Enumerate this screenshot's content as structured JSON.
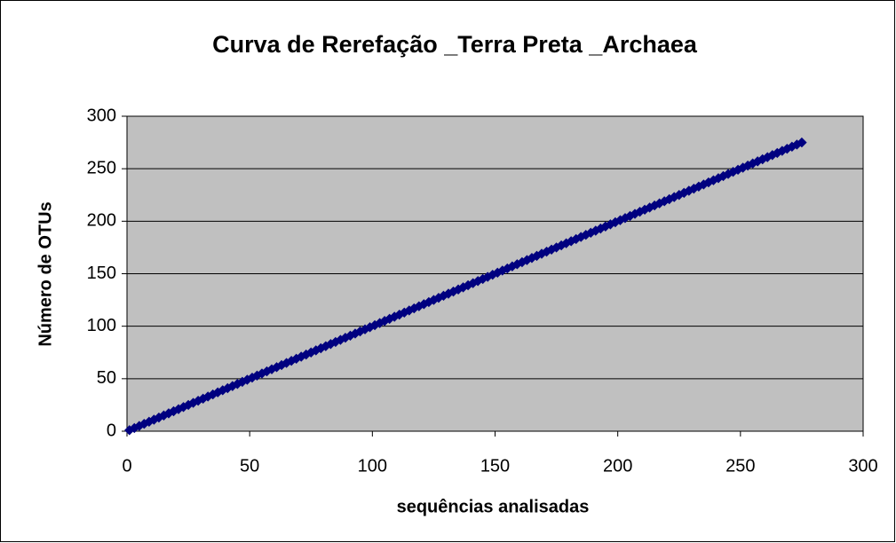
{
  "chart_data": {
    "type": "scatter",
    "title": "Curva de Rerefação _Terra Preta _Archaea",
    "x_label": "sequências analisadas",
    "y_label": "Número de OTUs",
    "xlim": [
      0,
      300
    ],
    "xticks": [
      0,
      50,
      100,
      150,
      200,
      250,
      300
    ],
    "ylim": [
      0,
      300
    ],
    "yticks": [
      0,
      50,
      100,
      150,
      200,
      250,
      300
    ],
    "grid": true,
    "background": "#c0c0c0",
    "series": [
      {
        "color": "#000080",
        "x": [
          1,
          3,
          5,
          7,
          9,
          11,
          13,
          15,
          17,
          19,
          21,
          23,
          25,
          27,
          29,
          31,
          33,
          35,
          37,
          39,
          41,
          43,
          45,
          47,
          49,
          51,
          53,
          55,
          57,
          59,
          61,
          63,
          65,
          67,
          69,
          71,
          73,
          75,
          77,
          79,
          81,
          83,
          85,
          87,
          89,
          91,
          93,
          95,
          97,
          99,
          101,
          103,
          105,
          107,
          109,
          111,
          113,
          115,
          117,
          119,
          121,
          123,
          125,
          127,
          129,
          131,
          133,
          135,
          137,
          139,
          141,
          143,
          145,
          147,
          149,
          151,
          153,
          155,
          157,
          159,
          161,
          163,
          165,
          167,
          169,
          171,
          173,
          175,
          177,
          179,
          181,
          183,
          185,
          187,
          189,
          191,
          193,
          195,
          197,
          199,
          201,
          203,
          205,
          207,
          209,
          211,
          213,
          215,
          217,
          219,
          221,
          223,
          225,
          227,
          229,
          231,
          233,
          235,
          237,
          239,
          241,
          243,
          245,
          247,
          249,
          251,
          253,
          255,
          257,
          259,
          261,
          263,
          265,
          267,
          269,
          271,
          273,
          275
        ],
        "values": [
          1,
          3,
          5,
          7,
          9,
          11,
          13,
          15,
          17,
          19,
          21,
          23,
          25,
          27,
          29,
          31,
          33,
          35,
          37,
          39,
          41,
          43,
          45,
          47,
          49,
          51,
          53,
          55,
          57,
          59,
          61,
          63,
          65,
          67,
          69,
          71,
          73,
          75,
          77,
          79,
          81,
          83,
          85,
          87,
          89,
          91,
          93,
          95,
          97,
          99,
          101,
          103,
          105,
          107,
          109,
          111,
          113,
          115,
          117,
          119,
          121,
          123,
          125,
          127,
          129,
          131,
          133,
          135,
          137,
          139,
          141,
          143,
          145,
          147,
          149,
          151,
          153,
          155,
          157,
          159,
          161,
          163,
          165,
          167,
          169,
          171,
          173,
          175,
          177,
          179,
          181,
          183,
          185,
          187,
          189,
          191,
          193,
          195,
          197,
          199,
          201,
          203,
          205,
          207,
          209,
          211,
          213,
          215,
          217,
          219,
          221,
          223,
          225,
          227,
          229,
          231,
          233,
          235,
          237,
          239,
          241,
          243,
          245,
          247,
          249,
          251,
          253,
          255,
          257,
          259,
          261,
          263,
          265,
          267,
          269,
          271,
          273,
          275
        ]
      }
    ]
  }
}
